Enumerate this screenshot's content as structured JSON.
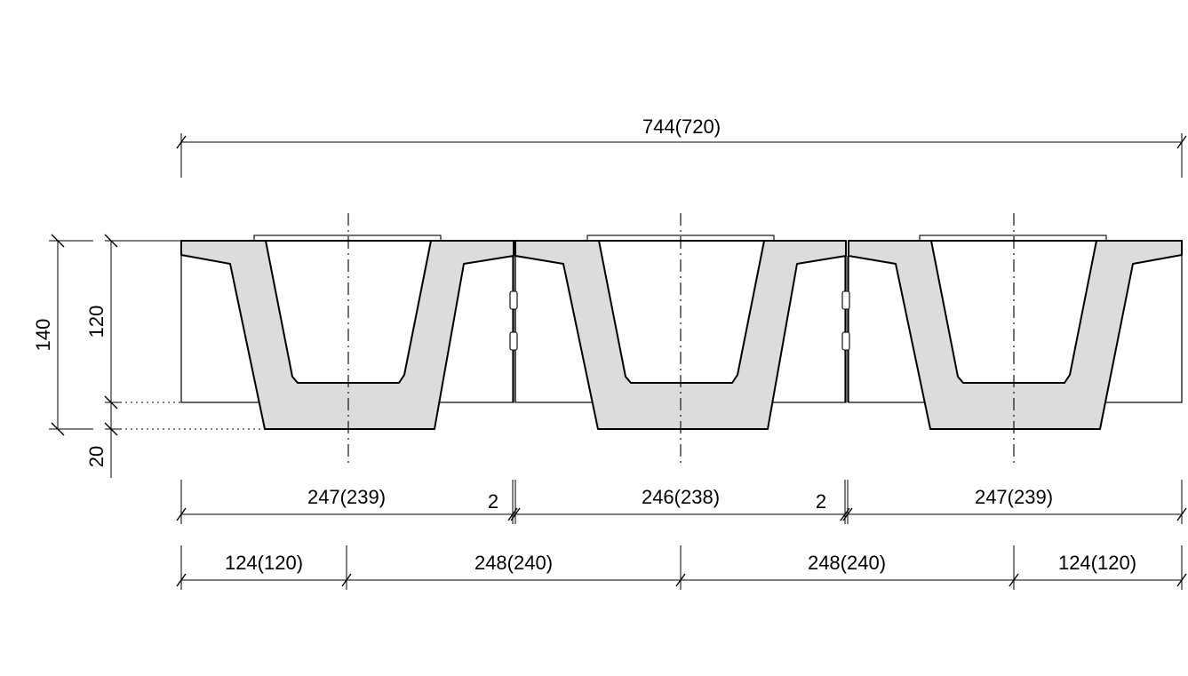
{
  "drawing": {
    "overall_width_label": "744(720)",
    "height_total_label": "140",
    "height_upper_label": "120",
    "height_lower_label": "20",
    "panel_width_labels": [
      "247(239)",
      "246(238)",
      "247(239)"
    ],
    "joint_gap_labels": [
      "2",
      "2"
    ],
    "axis_spacing_labels": [
      "124(120)",
      "248(240)",
      "248(240)",
      "124(120)"
    ],
    "line_color": "#000000",
    "section_fill": "#dcdcdc"
  }
}
